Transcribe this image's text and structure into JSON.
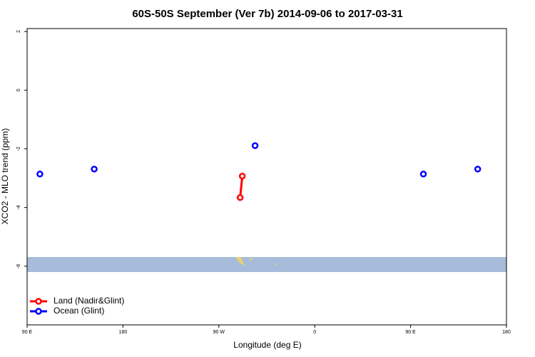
{
  "chart_data": {
    "type": "scatter",
    "title": "60S-50S September (Ver 7b)   2014-09-06 to 2017-03-31",
    "x_label": "Longitude (deg E)",
    "y_label": "XCO2 - MLO trend (ppm)",
    "xlim": [
      90,
      540
    ],
    "xticks": [
      {
        "value": 90,
        "label": "90 E"
      },
      {
        "value": 180,
        "label": "180"
      },
      {
        "value": 270,
        "label": "90 W"
      },
      {
        "value": 360,
        "label": "0"
      },
      {
        "value": 450,
        "label": "90 E"
      },
      {
        "value": 540,
        "label": "180"
      }
    ],
    "ylim": [
      -8,
      2.1
    ],
    "yticks": [
      2,
      0,
      -2,
      -4,
      -6
    ],
    "series": [
      {
        "name": "Land (Nadir&Glint)",
        "color": "#ff0000",
        "connected": true,
        "x": [
          290,
          292
        ],
        "values": [
          -3.66,
          -2.93
        ]
      },
      {
        "name": "Ocean (Glint)",
        "color": "#0000ff",
        "connected": false,
        "x": [
          102,
          153,
          304,
          462,
          513
        ],
        "values": [
          -2.86,
          -2.69,
          -1.89,
          -2.86,
          -2.69
        ]
      }
    ]
  }
}
